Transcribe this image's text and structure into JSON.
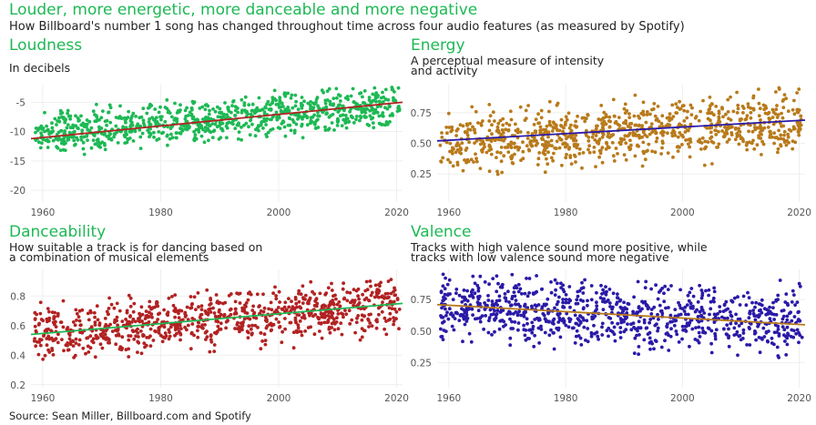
{
  "title": "Louder, more energetic, more danceable and more negative",
  "subtitle": "How Billboard's number 1 song has changed throughout time across four audio features (as measured by Spotify)",
  "source": "Source: Sean Miller, Billboard.com and Spotify",
  "chart_data": [
    {
      "type": "scatter",
      "title": "Loudness",
      "subtitle_lines": [
        "In decibels"
      ],
      "xlim": [
        1958,
        2021
      ],
      "ylim": [
        -22,
        -2
      ],
      "x_ticks": [
        1960,
        1980,
        2000,
        2020
      ],
      "y_ticks": [
        -20,
        -15,
        -10,
        -5
      ],
      "y_tick_labels": [
        "-20",
        "-15",
        "-10",
        "-5"
      ],
      "point_color": "#1db954",
      "trend_color": "#b22222",
      "trend": {
        "x": [
          1958,
          2021
        ],
        "y": [
          -11.2,
          -5.0
        ]
      },
      "n_points": 900,
      "point_y_median": [
        -10.5,
        -5.5
      ],
      "point_y_spread": 3,
      "grid": true
    },
    {
      "type": "scatter",
      "title": "Energy",
      "subtitle_lines": [
        "A perceptual measure of intensity",
        "and activity"
      ],
      "xlim": [
        1958,
        2021
      ],
      "ylim": [
        0.02,
        0.98
      ],
      "x_ticks": [
        1960,
        1980,
        2000,
        2020
      ],
      "y_ticks": [
        0.25,
        0.5,
        0.75
      ],
      "y_tick_labels": [
        "0.25",
        "0.50",
        "0.75"
      ],
      "point_color": "#b87a1a",
      "trend_color": "#2a1aa8",
      "trend": {
        "x": [
          1958,
          2021
        ],
        "y": [
          0.52,
          0.69
        ]
      },
      "n_points": 900,
      "point_y_median": [
        0.5,
        0.68
      ],
      "point_y_spread": 0.2,
      "grid": true
    },
    {
      "type": "scatter",
      "title": "Danceability",
      "subtitle_lines": [
        "How suitable a track is for dancing based on",
        "a combination of musical elements"
      ],
      "xlim": [
        1958,
        2021
      ],
      "ylim": [
        0.18,
        0.98
      ],
      "x_ticks": [
        1960,
        1980,
        2000,
        2020
      ],
      "y_ticks": [
        0.2,
        0.4,
        0.6,
        0.8
      ],
      "y_tick_labels": [
        "0.2",
        "0.4",
        "0.6",
        "0.8"
      ],
      "point_color": "#b22222",
      "trend_color": "#1db954",
      "trend": {
        "x": [
          1958,
          2021
        ],
        "y": [
          0.54,
          0.75
        ]
      },
      "n_points": 900,
      "point_y_median": [
        0.54,
        0.74
      ],
      "point_y_spread": 0.15,
      "grid": true
    },
    {
      "type": "scatter",
      "title": "Valence",
      "subtitle_lines": [
        "Tracks with high valence sound more positive, while",
        "tracks with low valence sound more negative"
      ],
      "xlim": [
        1958,
        2021
      ],
      "ylim": [
        0.05,
        0.99
      ],
      "x_ticks": [
        1960,
        1980,
        2000,
        2020
      ],
      "y_ticks": [
        0.25,
        0.5,
        0.75
      ],
      "y_tick_labels": [
        "0.25",
        "0.50",
        "0.75"
      ],
      "point_color": "#2a1aa8",
      "trend_color": "#b87a1a",
      "trend": {
        "x": [
          1958,
          2021
        ],
        "y": [
          0.71,
          0.55
        ]
      },
      "n_points": 900,
      "point_y_median": [
        0.7,
        0.55
      ],
      "point_y_spread": 0.22,
      "grid": true
    }
  ]
}
